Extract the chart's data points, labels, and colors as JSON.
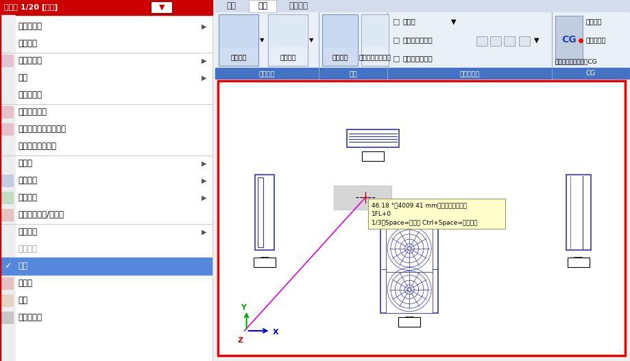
{
  "fig_width": 9.19,
  "fig_height": 5.27,
  "bg_color": "#f0f0f0",
  "ribbon_blue": "#4472c4",
  "ribbon_bg": "#dce6f1",
  "canvas_bg": "#ffffff",
  "canvas_border": "#ff0000",
  "blue_shape": "#3333aa",
  "title_bar_bg": "#cc0000",
  "title_bar_text": "平面図 1/20 [平面]",
  "menu_items": [
    [
      "縮尺の変更",
      true,
      false,
      false
    ],
    [
      "フィット",
      false,
      false,
      true
    ],
    [
      "スクロール",
      true,
      true,
      false
    ],
    [
      "余白",
      true,
      false,
      false
    ],
    [
      "オービット",
      false,
      false,
      true
    ],
    [
      "平面角の調整",
      false,
      true,
      false
    ],
    [
      "他のビューに位置揃え",
      false,
      true,
      false
    ],
    [
      "ビューを固定する",
      false,
      false,
      true
    ],
    [
      "重ね順",
      true,
      false,
      false
    ],
    [
      "隠線処理",
      true,
      true,
      false
    ],
    [
      "クリップ",
      true,
      true,
      false
    ],
    [
      "フロアの表示/非表示",
      false,
      true,
      true
    ],
    [
      "グリッド",
      true,
      false,
      false
    ],
    [
      "フロア線",
      false,
      false,
      false
    ],
    [
      "原点",
      false,
      false,
      true
    ],
    [
      "コピー",
      false,
      true,
      false
    ],
    [
      "削除",
      false,
      true,
      false
    ],
    [
      "プロパティ",
      false,
      true,
      false
    ]
  ],
  "highlighted_item": "原点",
  "ribbon_tabs": [
    "加工",
    "表示",
    "アドイン"
  ],
  "active_tab": "表示",
  "group1_label": "隠線処理",
  "group2_label": "原点",
  "group3_label": "ウィンドウ",
  "group4_label": "CG",
  "btn1": "自動隠線",
  "btn2": "手動隠線",
  "btn3": "原点移動",
  "btn4": "アラウンドビュー",
  "win_opt1": "パネル",
  "win_opt2": "新規ウィンドウ",
  "win_opt3": "図面の切り替え",
  "cg_label": "CG",
  "cg_opt1": "視点指定",
  "cg_opt2": "視点の表示",
  "cg_opt3": "カレントビューからCG",
  "label_heimen": "平面",
  "label_hidarimen": "左面",
  "label_migimen": "右面",
  "label_shomen": "正面",
  "tooltip_line1": "46.18 °，4009.41 mm（直方体の中心）",
  "tooltip_line2": "1FL+0",
  "tooltip_line3": "1/3（Space=次候補 Ctrl+Space=前候補）"
}
